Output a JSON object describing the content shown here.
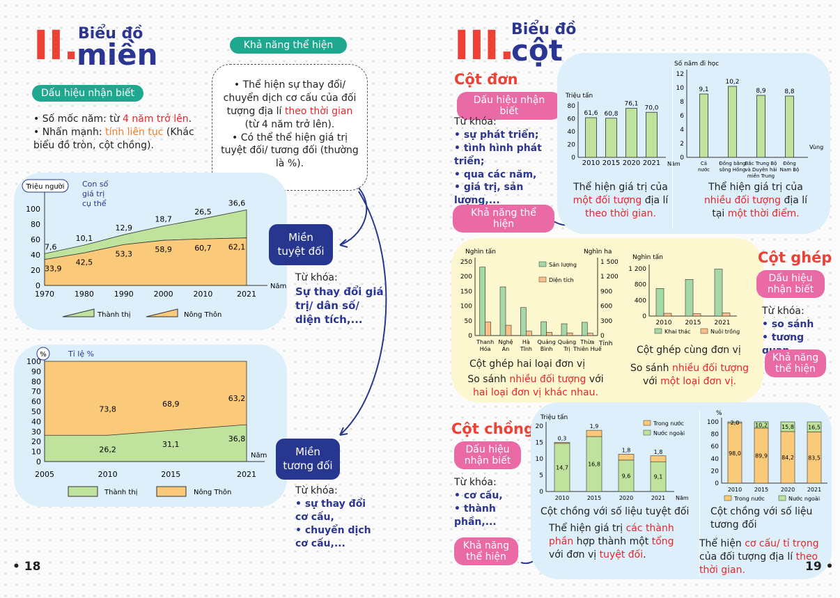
{
  "left": {
    "section_num": "II.",
    "section_small": "Biểu đồ",
    "section_big": "miền",
    "sign_pill": "Dấu hiệu nhận biết",
    "sign1_a": "• Số mốc năm: từ ",
    "sign1_b": "4 năm trở lên",
    "sign1_c": ".",
    "sign2_a": "• Nhấn mạnh: ",
    "sign2_b": "tính liên tục",
    "sign2_c": " (Khác biểu đồ tròn, cột chồng).",
    "ability_pill": "Khả năng thể hiện",
    "ability1_a": "• Thể hiện sự thay đổi/ chuyển dịch cơ cấu của đối tượng địa lí ",
    "ability1_b": "theo thời gian",
    "ability1_c": " (từ 4 năm trở lên).",
    "ability2": "• Có thể thể hiện giá trị tuyệt đối/ tương đối (thường là %).",
    "abs_label": "Miền tuyệt đối",
    "abs_kw_title": "Từ khóa:",
    "abs_kw": "Sự thay đổi giá trị/ dân số/ diện tích,...",
    "rel_label": "Miền tương đối",
    "rel_kw_title": "Từ khóa:",
    "rel_kw1": "• sự thay đổi cơ cấu,",
    "rel_kw2": "• chuyển dịch cơ cấu,...",
    "page_num": "• 18"
  },
  "right": {
    "section_num": "III.",
    "section_small": "Biểu đồ",
    "section_big": "cột",
    "simple_title": "Cột đơn",
    "simple_sign_pill": "Dấu hiệu nhận biết",
    "simple_kw_title": "Từ khóa:",
    "simple_kw": "• sự phát triển;\n• tình hình phát triển;\n• qua các năm,\n• giá trị, sản lượng,...",
    "simple_ability_pill": "Khả năng thể hiện",
    "simple_desc1_a": "Thể hiện giá trị của ",
    "simple_desc1_b": "một đối tượng",
    "simple_desc1_c": " địa lí ",
    "simple_desc1_d": "theo thời gian.",
    "simple_desc2_a": "Thể hiện giá trị của ",
    "simple_desc2_b": "nhiều đối tượng",
    "simple_desc2_c": " địa lí tại ",
    "simple_desc2_d": "một thời điểm.",
    "group_title": "Cột ghép",
    "group_sign_pill": "Dấu hiệu nhận biết",
    "group_kw_title": "Từ khóa:",
    "group_kw1": "• so sánh",
    "group_kw2": "• tương quan",
    "group_ability_pill": "Khả năng thể hiện",
    "group_cap1": "Cột ghép hai loại đơn vị",
    "group_desc1_a": "So sánh ",
    "group_desc1_b": "nhiều đối tượng",
    "group_desc1_c": " với ",
    "group_desc1_d": "hai loại đơn vị khác nhau.",
    "group_cap2": "Cột ghép cùng đơn vị",
    "group_desc2_a": "So sánh ",
    "group_desc2_b": "nhiều đối tượng",
    "group_desc2_c": " với ",
    "group_desc2_d": "một loại đơn vị.",
    "stack_title": "Cột chồng",
    "stack_sign_pill": "Dấu hiệu nhận biết",
    "stack_kw_title": "Từ khóa:",
    "stack_kw1": "• cơ cấu,",
    "stack_kw2": "• thành phần,...",
    "stack_ability_pill": "Khả năng thể hiện",
    "stack_cap1": "Cột chồng với số liệu tuyệt đối",
    "stack_desc1_a": "Thể hiện giá trị ",
    "stack_desc1_b": "các thành phần",
    "stack_desc1_c": " hợp thành một ",
    "stack_desc1_d": "tổng",
    "stack_desc1_e": " với đơn vị ",
    "stack_desc1_f": "tuyệt đối",
    "stack_desc1_g": ".",
    "stack_cap2": "Cột chồng với số liệu tương đối",
    "stack_desc2_a": "Thể hiện ",
    "stack_desc2_b": "cơ cấu/ tỉ trọng",
    "stack_desc2_c": " của đối tượng địa lí ",
    "stack_desc2_d": "theo thời gian.",
    "page_num": "19 •"
  },
  "chart_data": [
    {
      "id": "area_absolute",
      "type": "area",
      "ylabel": "Triệu người",
      "xlabel": "Năm",
      "annotation": "Con số giá trị cụ thể",
      "x": [
        1970,
        1980,
        1990,
        2000,
        2010,
        2021
      ],
      "ylim": [
        0,
        100
      ],
      "yticks": [
        0,
        20,
        40,
        60,
        80,
        100
      ],
      "series": [
        {
          "name": "Nông Thôn",
          "values": [
            33.9,
            42.5,
            53.3,
            58.9,
            60.7,
            62.1
          ],
          "color": "#fbc97a"
        },
        {
          "name": "Thành thị",
          "values": [
            7.6,
            10.1,
            12.9,
            18.7,
            26.5,
            36.6
          ],
          "color": "#bfe29d"
        }
      ]
    },
    {
      "id": "area_relative",
      "type": "area",
      "ylabel": "Tỉ lệ %",
      "ylabel_unit": "%",
      "xlabel": "Năm",
      "x": [
        2005,
        2010,
        2015,
        2021
      ],
      "ylim": [
        0,
        100
      ],
      "yticks": [
        0,
        10,
        20,
        30,
        40,
        50,
        60,
        70,
        80,
        90,
        100
      ],
      "series": [
        {
          "name": "Thành thị",
          "values": [
            26.2,
            26.2,
            31.1,
            36.8
          ],
          "color": "#bfe29d"
        },
        {
          "name": "Nông Thôn",
          "values": [
            73.8,
            73.8,
            68.9,
            63.2
          ],
          "color": "#fbc97a"
        }
      ],
      "labels": [
        {
          "x": 2010,
          "thanh_thi": "26,2",
          "nong_thon": "73,8"
        },
        {
          "x": 2015,
          "thanh_thi": "31,1",
          "nong_thon": "68,9"
        },
        {
          "x": 2021,
          "thanh_thi": "36,8",
          "nong_thon": "63,2"
        }
      ]
    },
    {
      "id": "bar_time",
      "type": "bar",
      "ylabel": "Triệu tấn",
      "xlabel": "Năm",
      "categories": [
        "2010",
        "2015",
        "2020",
        "2021"
      ],
      "values": [
        61.6,
        60.8,
        76.1,
        70.0
      ],
      "value_labels": [
        "61,6",
        "60,8",
        "76,1",
        "70,0"
      ],
      "ylim": [
        0,
        80
      ],
      "yticks": [
        0,
        20,
        40,
        60,
        80
      ]
    },
    {
      "id": "bar_regions",
      "type": "bar",
      "ylabel": "Số năm đi học",
      "xlabel": "Vùng",
      "categories": [
        "Cả nước",
        "Đồng bằng sông Hồng",
        "Bắc Trung Bộ và Duyên hải miền Trung",
        "Đông Nam Bộ"
      ],
      "tick_lines": [
        [
          "Cả",
          "nước"
        ],
        [
          "Đồng bằng",
          "sông Hồng"
        ],
        [
          "Bắc Trung Bộ",
          "và Duyên hải",
          "miền Trung"
        ],
        [
          "Đông",
          "Nam Bộ"
        ]
      ],
      "values": [
        9.1,
        10.2,
        8.9,
        8.8
      ],
      "value_labels": [
        "9,1",
        "10,2",
        "8,9",
        "8,8"
      ],
      "ylim": [
        0,
        12
      ],
      "yticks": [
        0,
        2,
        4,
        6,
        8,
        10,
        12
      ]
    },
    {
      "id": "grouped_two_units",
      "type": "bar",
      "ylabel_left": "Nghìn tấn",
      "ylabel_right": "Nghìn ha",
      "xlabel": "Tỉnh",
      "categories": [
        "Thanh Hóa",
        "Nghệ An",
        "Hà Tĩnh",
        "Quảng Bình",
        "Quảng Trị",
        "Thừa Thiên Huế"
      ],
      "tick_lines": [
        [
          "Thanh",
          "Hóa"
        ],
        [
          "Nghệ",
          "An"
        ],
        [
          "Hà",
          "Tĩnh"
        ],
        [
          "Quảng",
          "Bình"
        ],
        [
          "Quảng",
          "Trị"
        ],
        [
          "Thừa",
          "Thiên Huế"
        ]
      ],
      "ylim_left": [
        0,
        250
      ],
      "yticks_left": [
        0,
        50,
        100,
        150,
        200,
        250
      ],
      "ylim_right": [
        0,
        1500
      ],
      "yticks_right": [
        "0",
        "300",
        "600",
        "900",
        "1 200",
        "1 500"
      ],
      "series": [
        {
          "name": "Sản lượng",
          "axis": "left",
          "values": [
            232,
            165,
            95,
            47,
            40,
            45
          ],
          "color": "#a6d7a6"
        },
        {
          "name": "Diện tích",
          "axis": "right",
          "values": [
            230,
            175,
            75,
            55,
            45,
            40
          ],
          "color": "#fbc08a"
        }
      ]
    },
    {
      "id": "grouped_one_unit",
      "type": "bar",
      "ylabel": "Nghìn tấn",
      "categories": [
        "2010",
        "2015",
        "2021"
      ],
      "ylim": [
        0,
        1200
      ],
      "yticks": [
        "0",
        "400",
        "800",
        "1 200"
      ],
      "series": [
        {
          "name": "Khai thác",
          "values": [
            700,
            930,
            1190
          ],
          "color": "#a6d7a6"
        },
        {
          "name": "Nuôi trồng",
          "values": [
            70,
            60,
            80
          ],
          "color": "#fbc08a"
        }
      ]
    },
    {
      "id": "stacked_absolute",
      "type": "bar",
      "ylabel": "Triệu tấn",
      "xlabel": "Năm",
      "categories": [
        "2010",
        "2015",
        "2020",
        "2021"
      ],
      "ylim": [
        0,
        20
      ],
      "yticks": [
        0,
        5,
        10,
        15,
        20
      ],
      "series": [
        {
          "name": "Nước ngoài",
          "values": [
            14.7,
            16.8,
            9.6,
            9.1
          ],
          "labels": [
            "14,7",
            "16,8",
            "9,6",
            "9,1"
          ],
          "color": "#bfe29d"
        },
        {
          "name": "Trong nước",
          "values": [
            0.3,
            1.9,
            1.8,
            1.8
          ],
          "labels": [
            "0,3",
            "1,9",
            "1,8",
            "1,8"
          ],
          "color": "#fbc97a"
        }
      ]
    },
    {
      "id": "stacked_relative",
      "type": "bar",
      "ylabel": "%",
      "categories": [
        "2010",
        "2015",
        "2020",
        "2021"
      ],
      "ylim": [
        0,
        100
      ],
      "yticks": [
        0,
        20,
        40,
        60,
        80,
        100
      ],
      "series": [
        {
          "name": "Trong nước",
          "values": [
            98.0,
            89.9,
            84.2,
            83.5
          ],
          "labels": [
            "98,0",
            "89,9",
            "84,2",
            "83,5"
          ],
          "color": "#fbc97a"
        },
        {
          "name": "Nước ngoài",
          "values": [
            2.0,
            10.2,
            15.8,
            16.5
          ],
          "labels": [
            "2,0",
            "10,2",
            "15,8",
            "16,5"
          ],
          "color": "#bfe29d"
        }
      ]
    }
  ]
}
